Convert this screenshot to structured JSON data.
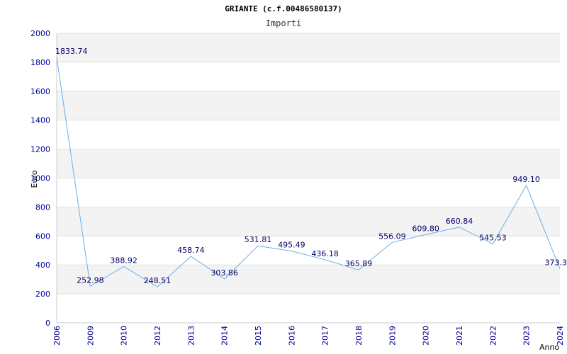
{
  "chart_data": {
    "type": "line",
    "title": "GRIANTE (c.f.00486580137)",
    "subtitle": "Importi",
    "xlabel": "Anno",
    "ylabel": "Euro",
    "ylim": [
      0,
      2000
    ],
    "yticks": [
      0,
      200,
      400,
      600,
      800,
      1000,
      1200,
      1400,
      1600,
      1800,
      2000
    ],
    "categories": [
      "2006",
      "2009",
      "2010",
      "2012",
      "2013",
      "2014",
      "2015",
      "2016",
      "2017",
      "2018",
      "2019",
      "2020",
      "2021",
      "2022",
      "2023",
      "2024"
    ],
    "values": [
      1833.74,
      252.98,
      388.92,
      248.51,
      458.74,
      303.86,
      531.81,
      495.49,
      436.18,
      365.89,
      556.09,
      609.8,
      660.84,
      545.53,
      949.1,
      373.3
    ],
    "value_labels": [
      "1833.74",
      "252.98",
      "388.92",
      "248.51",
      "458.74",
      "303.86",
      "531.81",
      "495.49",
      "436.18",
      "365.89",
      "556.09",
      "609.80",
      "660.84",
      "545.53",
      "949.10",
      "373.3"
    ],
    "grid": true,
    "line_color": "#6aaee8",
    "band_color": "#f3f3f3",
    "tick_color": "#000099"
  }
}
